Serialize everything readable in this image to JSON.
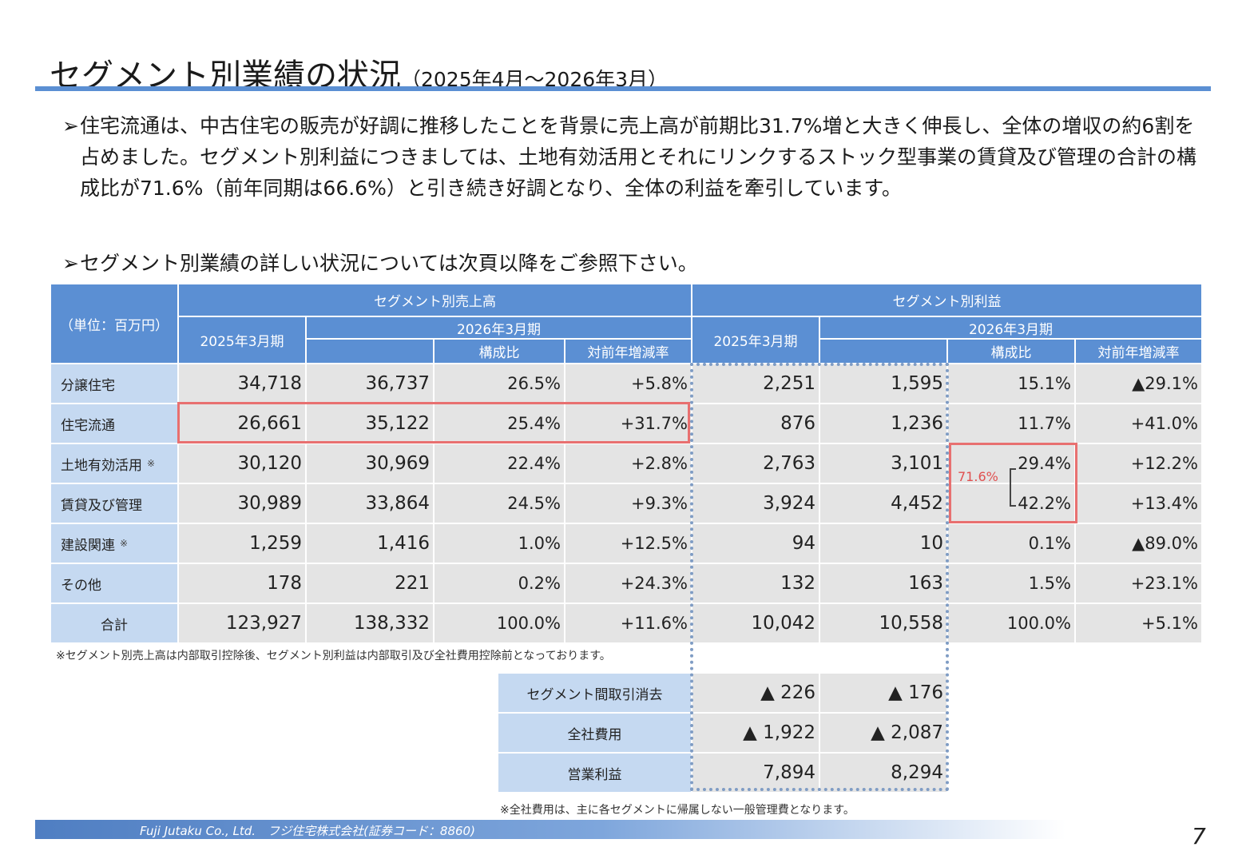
{
  "title": {
    "main": "セグメント別業績の状況",
    "period": "（2025年4月～2026年3月）"
  },
  "bullets": [
    {
      "mark": "➢",
      "text": "住宅流通は、中古住宅の販売が好調に推移したことを背景に売上高が前期比31.7%増と大きく伸長し、全体の増収の約6割を占めました。セグメント別利益につきましては、土地有効活用とそれにリンクするストック型事業の賃貸及び管理の合計の構成比が71.6%（前年同期は66.6%）と引き続き好調となり、全体の利益を牽引しています。"
    },
    {
      "mark": "➢",
      "text": "セグメント別業績の詳しい状況については次頁以降をご参照下さい。"
    }
  ],
  "table": {
    "unit_label": "（単位：百万円）",
    "sales_header": "セグメント別売上高",
    "profit_header": "セグメント別利益",
    "prev_fy": "2025年3月期",
    "curr_fy": "2026年3月期",
    "ratio_label": "構成比",
    "yoy_label": "対前年増減率",
    "note_mark": "※",
    "rows": [
      {
        "label": "分譲住宅",
        "note": false,
        "s_prev": "34,718",
        "s_curr": "36,737",
        "s_ratio": "26.5%",
        "s_yoy": "+5.8%",
        "p_prev": "2,251",
        "p_curr": "1,595",
        "p_ratio": "15.1%",
        "p_yoy": "▲29.1%"
      },
      {
        "label": "住宅流通",
        "note": false,
        "s_prev": "26,661",
        "s_curr": "35,122",
        "s_ratio": "25.4%",
        "s_yoy": "+31.7%",
        "p_prev": "876",
        "p_curr": "1,236",
        "p_ratio": "11.7%",
        "p_yoy": "+41.0%"
      },
      {
        "label": "土地有効活用",
        "note": true,
        "s_prev": "30,120",
        "s_curr": "30,969",
        "s_ratio": "22.4%",
        "s_yoy": "+2.8%",
        "p_prev": "2,763",
        "p_curr": "3,101",
        "p_ratio": "29.4%",
        "p_yoy": "+12.2%"
      },
      {
        "label": "賃貸及び管理",
        "note": false,
        "s_prev": "30,989",
        "s_curr": "33,864",
        "s_ratio": "24.5%",
        "s_yoy": "+9.3%",
        "p_prev": "3,924",
        "p_curr": "4,452",
        "p_ratio": "42.2%",
        "p_yoy": "+13.4%"
      },
      {
        "label": "建設関連",
        "note": true,
        "s_prev": "1,259",
        "s_curr": "1,416",
        "s_ratio": "1.0%",
        "s_yoy": "+12.5%",
        "p_prev": "94",
        "p_curr": "10",
        "p_ratio": "0.1%",
        "p_yoy": "▲89.0%"
      },
      {
        "label": "その他",
        "note": false,
        "s_prev": "178",
        "s_curr": "221",
        "s_ratio": "0.2%",
        "s_yoy": "+24.3%",
        "p_prev": "132",
        "p_curr": "163",
        "p_ratio": "1.5%",
        "p_yoy": "+23.1%"
      },
      {
        "label": "合計",
        "note": false,
        "s_prev": "123,927",
        "s_curr": "138,332",
        "s_ratio": "100.0%",
        "s_yoy": "+11.6%",
        "p_prev": "10,042",
        "p_curr": "10,558",
        "p_ratio": "100.0%",
        "p_yoy": "+5.1%"
      }
    ],
    "note": "※セグメント別売上高は内部取引控除後、セグメント別利益は内部取引及び全社費用控除前となっております。",
    "combined_ratio": "71.6%"
  },
  "sub_table": {
    "rows": [
      {
        "label": "セグメント間取引消去",
        "prev": "▲ 226",
        "curr": "▲ 176"
      },
      {
        "label": "全社費用",
        "prev": "▲ 1,922",
        "curr": "▲ 2,087"
      },
      {
        "label": "営業利益",
        "prev": "7,894",
        "curr": "8,294"
      }
    ],
    "note": "※全社費用は、主に各セグメントに帰属しない一般管理費となります。"
  },
  "footer": {
    "company": "Fuji Jutaku Co., Ltd.　フジ住宅株式会社(証券コード：8860)",
    "page": "7"
  },
  "colors": {
    "header_blue": "#5b8fd3",
    "label_blue": "#c5d9f1",
    "value_gray": "#e4e4e4",
    "highlight_red": "#e87070",
    "dotted_blue": "#7f9cc4"
  }
}
